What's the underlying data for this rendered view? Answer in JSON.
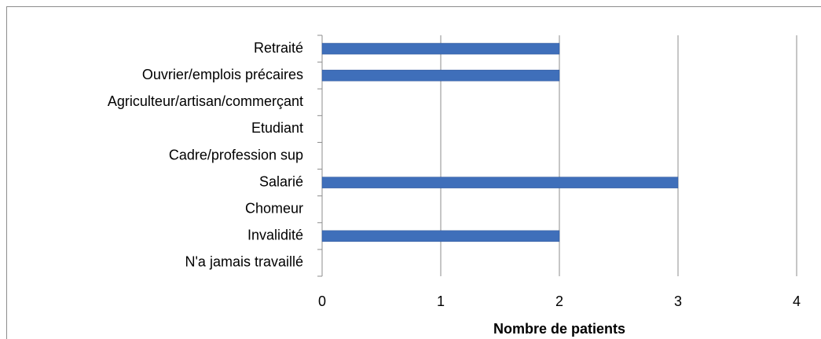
{
  "chart_data": {
    "type": "bar",
    "orientation": "horizontal",
    "categories": [
      "Retraité",
      "Ouvrier/emplois précaires",
      "Agriculteur/artisan/commerçant",
      "Etudiant",
      "Cadre/profession sup",
      "Salarié",
      "Chomeur",
      "Invalidité",
      "N'a jamais travaillé"
    ],
    "values": [
      2,
      2,
      0,
      0,
      0,
      3,
      0,
      2,
      0
    ],
    "color": "#3f6fba",
    "x_label": "Nombre de patients",
    "xlim": [
      0,
      4
    ],
    "xticks": [
      0,
      1,
      2,
      3,
      4
    ],
    "grid": true
  }
}
